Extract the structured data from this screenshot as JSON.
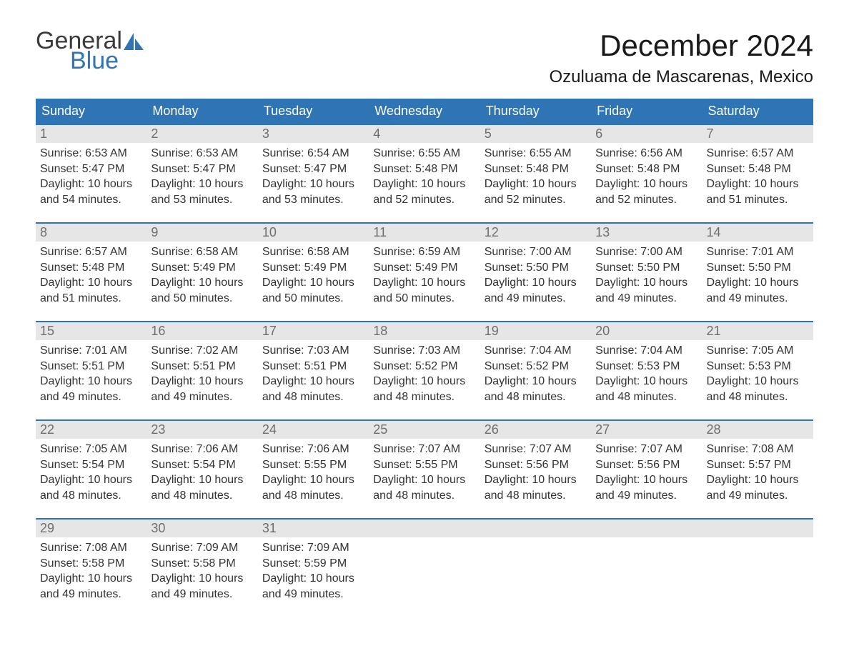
{
  "logo": {
    "word1": "General",
    "word2": "Blue",
    "icon": "sail-icon",
    "color_dark": "#3a3a3a",
    "color_blue": "#2f74b5"
  },
  "title": "December 2024",
  "location": "Ozuluama de Mascarenas, Mexico",
  "colors": {
    "header_bg": "#2f74b5",
    "header_text": "#ffffff",
    "daynum_bg": "#e6e6e6",
    "daynum_text": "#6e6e6e",
    "body_text": "#333333",
    "row_border": "#2f74b5",
    "page_bg": "#ffffff"
  },
  "fonts": {
    "title_size_pt": 32,
    "location_size_pt": 18,
    "header_size_pt": 14,
    "body_size_pt": 12
  },
  "day_headers": [
    "Sunday",
    "Monday",
    "Tuesday",
    "Wednesday",
    "Thursday",
    "Friday",
    "Saturday"
  ],
  "labels": {
    "sunrise": "Sunrise:",
    "sunset": "Sunset:",
    "daylight": "Daylight:"
  },
  "weeks": [
    [
      {
        "n": "1",
        "sunrise": "6:53 AM",
        "sunset": "5:47 PM",
        "daylight": "10 hours and 54 minutes."
      },
      {
        "n": "2",
        "sunrise": "6:53 AM",
        "sunset": "5:47 PM",
        "daylight": "10 hours and 53 minutes."
      },
      {
        "n": "3",
        "sunrise": "6:54 AM",
        "sunset": "5:47 PM",
        "daylight": "10 hours and 53 minutes."
      },
      {
        "n": "4",
        "sunrise": "6:55 AM",
        "sunset": "5:48 PM",
        "daylight": "10 hours and 52 minutes."
      },
      {
        "n": "5",
        "sunrise": "6:55 AM",
        "sunset": "5:48 PM",
        "daylight": "10 hours and 52 minutes."
      },
      {
        "n": "6",
        "sunrise": "6:56 AM",
        "sunset": "5:48 PM",
        "daylight": "10 hours and 52 minutes."
      },
      {
        "n": "7",
        "sunrise": "6:57 AM",
        "sunset": "5:48 PM",
        "daylight": "10 hours and 51 minutes."
      }
    ],
    [
      {
        "n": "8",
        "sunrise": "6:57 AM",
        "sunset": "5:48 PM",
        "daylight": "10 hours and 51 minutes."
      },
      {
        "n": "9",
        "sunrise": "6:58 AM",
        "sunset": "5:49 PM",
        "daylight": "10 hours and 50 minutes."
      },
      {
        "n": "10",
        "sunrise": "6:58 AM",
        "sunset": "5:49 PM",
        "daylight": "10 hours and 50 minutes."
      },
      {
        "n": "11",
        "sunrise": "6:59 AM",
        "sunset": "5:49 PM",
        "daylight": "10 hours and 50 minutes."
      },
      {
        "n": "12",
        "sunrise": "7:00 AM",
        "sunset": "5:50 PM",
        "daylight": "10 hours and 49 minutes."
      },
      {
        "n": "13",
        "sunrise": "7:00 AM",
        "sunset": "5:50 PM",
        "daylight": "10 hours and 49 minutes."
      },
      {
        "n": "14",
        "sunrise": "7:01 AM",
        "sunset": "5:50 PM",
        "daylight": "10 hours and 49 minutes."
      }
    ],
    [
      {
        "n": "15",
        "sunrise": "7:01 AM",
        "sunset": "5:51 PM",
        "daylight": "10 hours and 49 minutes."
      },
      {
        "n": "16",
        "sunrise": "7:02 AM",
        "sunset": "5:51 PM",
        "daylight": "10 hours and 49 minutes."
      },
      {
        "n": "17",
        "sunrise": "7:03 AM",
        "sunset": "5:51 PM",
        "daylight": "10 hours and 48 minutes."
      },
      {
        "n": "18",
        "sunrise": "7:03 AM",
        "sunset": "5:52 PM",
        "daylight": "10 hours and 48 minutes."
      },
      {
        "n": "19",
        "sunrise": "7:04 AM",
        "sunset": "5:52 PM",
        "daylight": "10 hours and 48 minutes."
      },
      {
        "n": "20",
        "sunrise": "7:04 AM",
        "sunset": "5:53 PM",
        "daylight": "10 hours and 48 minutes."
      },
      {
        "n": "21",
        "sunrise": "7:05 AM",
        "sunset": "5:53 PM",
        "daylight": "10 hours and 48 minutes."
      }
    ],
    [
      {
        "n": "22",
        "sunrise": "7:05 AM",
        "sunset": "5:54 PM",
        "daylight": "10 hours and 48 minutes."
      },
      {
        "n": "23",
        "sunrise": "7:06 AM",
        "sunset": "5:54 PM",
        "daylight": "10 hours and 48 minutes."
      },
      {
        "n": "24",
        "sunrise": "7:06 AM",
        "sunset": "5:55 PM",
        "daylight": "10 hours and 48 minutes."
      },
      {
        "n": "25",
        "sunrise": "7:07 AM",
        "sunset": "5:55 PM",
        "daylight": "10 hours and 48 minutes."
      },
      {
        "n": "26",
        "sunrise": "7:07 AM",
        "sunset": "5:56 PM",
        "daylight": "10 hours and 48 minutes."
      },
      {
        "n": "27",
        "sunrise": "7:07 AM",
        "sunset": "5:56 PM",
        "daylight": "10 hours and 49 minutes."
      },
      {
        "n": "28",
        "sunrise": "7:08 AM",
        "sunset": "5:57 PM",
        "daylight": "10 hours and 49 minutes."
      }
    ],
    [
      {
        "n": "29",
        "sunrise": "7:08 AM",
        "sunset": "5:58 PM",
        "daylight": "10 hours and 49 minutes."
      },
      {
        "n": "30",
        "sunrise": "7:09 AM",
        "sunset": "5:58 PM",
        "daylight": "10 hours and 49 minutes."
      },
      {
        "n": "31",
        "sunrise": "7:09 AM",
        "sunset": "5:59 PM",
        "daylight": "10 hours and 49 minutes."
      },
      null,
      null,
      null,
      null
    ]
  ]
}
